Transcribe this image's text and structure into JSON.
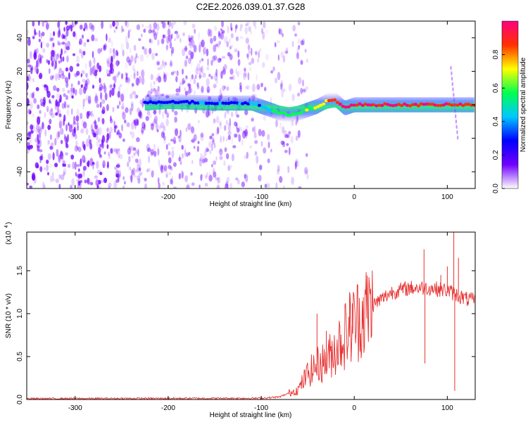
{
  "title": "C2E2.2026.039.01.37.G28",
  "chart_data": [
    {
      "type": "heatmap",
      "name": "spectrogram",
      "xlabel": "Height of straight line (km)",
      "ylabel": "Frequency (Hz)",
      "xlim": [
        -352,
        130
      ],
      "ylim": [
        -50,
        50
      ],
      "xticks": [
        -300,
        -200,
        -100,
        0,
        100
      ],
      "xtick_labels": [
        "-300",
        "-200",
        "-100",
        "0",
        "100"
      ],
      "yticks": [
        -40,
        -20,
        0,
        20,
        40
      ],
      "ytick_labels": [
        "-40",
        "-20",
        "0",
        "20",
        "40"
      ],
      "colorbar": {
        "label": "Normalized spectral amplitude",
        "range": [
          0,
          1
        ],
        "ticks": [
          0.0,
          0.2,
          0.4,
          0.6,
          0.8
        ],
        "tick_labels": [
          "0.0",
          "0.2",
          "0.4",
          "0.6",
          "0.8"
        ],
        "colormap": [
          "#ffffff",
          "#7000ff",
          "#0000ff",
          "#00c8ff",
          "#00ff50",
          "#ffff00",
          "#ff3000",
          "#ff0080"
        ]
      },
      "ridge": {
        "description": "carrier line frequency vs height",
        "x": [
          -225,
          -200,
          -150,
          -110,
          -100,
          -90,
          -80,
          -70,
          -60,
          -50,
          -40,
          -30,
          -20,
          -10,
          0,
          20,
          60,
          100,
          110,
          130
        ],
        "freq": [
          1,
          2,
          1,
          1,
          -1,
          -3,
          -5,
          -6,
          -5,
          -3,
          -1,
          2,
          3,
          -2,
          0,
          0,
          0,
          0,
          0,
          0
        ],
        "amplitude": [
          0.3,
          0.3,
          0.3,
          0.35,
          0.4,
          0.5,
          0.6,
          0.65,
          0.6,
          0.6,
          0.7,
          0.75,
          0.85,
          0.9,
          0.95,
          0.95,
          0.95,
          0.9,
          0.9,
          0.85
        ]
      },
      "noise_region_x": [
        -352,
        -80
      ]
    },
    {
      "type": "line",
      "name": "snr",
      "xlabel": "Height of straight line (km)",
      "ylabel": "SNR (10 * v/v)",
      "y_multiplier_label": "(x10",
      "y_multiplier_exp": "4",
      "xlim": [
        -352,
        130
      ],
      "ylim": [
        0,
        1.95
      ],
      "xticks": [
        -300,
        -200,
        -100,
        0,
        100
      ],
      "xtick_labels": [
        "-300",
        "-200",
        "-100",
        "0",
        "100"
      ],
      "yticks": [
        0.0,
        0.5,
        1.0,
        1.5
      ],
      "ytick_labels": [
        "0.0",
        "0.5",
        "1.0",
        "1.5"
      ],
      "color": "#e83030",
      "envelope": {
        "x": [
          -352,
          -100,
          -80,
          -60,
          -50,
          -40,
          -30,
          -20,
          -10,
          0,
          20,
          40,
          60,
          80,
          100,
          110,
          120,
          130
        ],
        "y": [
          0.01,
          0.015,
          0.03,
          0.12,
          0.3,
          0.4,
          0.45,
          0.6,
          0.75,
          0.9,
          1.1,
          1.25,
          1.3,
          1.3,
          1.27,
          1.22,
          1.17,
          1.15
        ]
      },
      "spikes": [
        {
          "x": -40,
          "y": 1.0
        },
        {
          "x": -30,
          "y": 0.8
        },
        {
          "x": -5,
          "y": 1.25
        },
        {
          "x": -2,
          "y": 1.12
        },
        {
          "x": 75,
          "y": 1.75
        },
        {
          "x": 76,
          "y": 0.42
        },
        {
          "x": 93,
          "y": 1.45
        },
        {
          "x": 100,
          "y": 1.55
        },
        {
          "x": 107,
          "y": 1.95
        },
        {
          "x": 108,
          "y": 0.1
        },
        {
          "x": 112,
          "y": 1.65
        }
      ]
    }
  ]
}
